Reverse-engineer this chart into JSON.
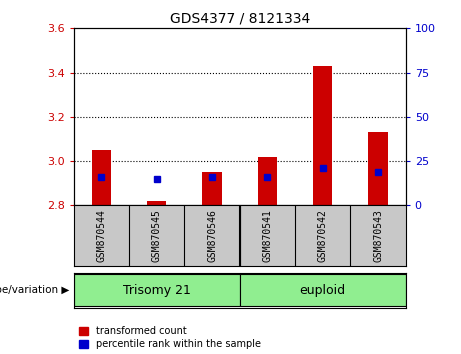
{
  "title": "GDS4377 / 8121334",
  "samples": [
    "GSM870544",
    "GSM870545",
    "GSM870546",
    "GSM870541",
    "GSM870542",
    "GSM870543"
  ],
  "red_bar_bottom": 2.8,
  "red_bar_tops": [
    3.05,
    2.82,
    2.95,
    3.02,
    3.43,
    3.13
  ],
  "blue_dot_values": [
    2.93,
    2.92,
    2.93,
    2.93,
    2.97,
    2.95
  ],
  "ylim_left": [
    2.8,
    3.6
  ],
  "ylim_right": [
    0,
    100
  ],
  "yticks_left": [
    2.8,
    3.0,
    3.2,
    3.4,
    3.6
  ],
  "yticks_right": [
    0,
    25,
    50,
    75,
    100
  ],
  "bar_width": 0.35,
  "red_color": "#CC0000",
  "blue_color": "#0000CC",
  "bg_label": "#c8c8c8",
  "green_color": "#90EE90",
  "grid_color": "black",
  "left_tick_color": "#CC0000",
  "right_tick_color": "#0000CC",
  "group_divider": 2.5,
  "trisomy_label": "Trisomy 21",
  "euploid_label": "euploid",
  "genotype_label": "genotype/variation",
  "legend_items": [
    {
      "label": "transformed count",
      "color": "#CC0000"
    },
    {
      "label": "percentile rank within the sample",
      "color": "#0000CC"
    }
  ],
  "title_fontsize": 10,
  "tick_fontsize": 8,
  "sample_fontsize": 7,
  "group_fontsize": 9,
  "legend_fontsize": 7
}
